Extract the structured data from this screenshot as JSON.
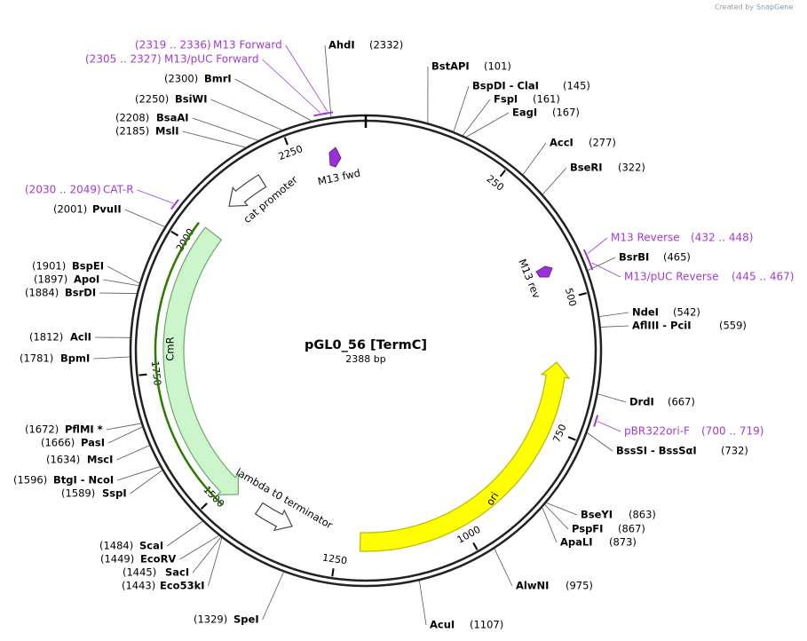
{
  "created_by": "Created by",
  "brand": "SnapGene",
  "title": "pGL0_56 [TermC]",
  "length": "2388 bp",
  "sites": [
    {
      "name": "AhdI",
      "pos": "(2332)"
    },
    {
      "name": "BstAPI",
      "pos": "(101)"
    },
    {
      "name": "BspDI - ClaI",
      "pos": "(145)"
    },
    {
      "name": "FspI",
      "pos": "(161)"
    },
    {
      "name": "EagI",
      "pos": "(167)"
    },
    {
      "name": "AccI",
      "pos": "(277)"
    },
    {
      "name": "BseRI",
      "pos": "(322)"
    },
    {
      "name": "BsrBI",
      "pos": "(465)"
    },
    {
      "name": "NdeI",
      "pos": "(542)"
    },
    {
      "name": "AflIII - PciI",
      "pos": "(559)"
    },
    {
      "name": "DrdI",
      "pos": "(667)"
    },
    {
      "name": "BssSI - BssSαI",
      "pos": "(732)"
    },
    {
      "name": "BseYI",
      "pos": "(863)"
    },
    {
      "name": "PspFI",
      "pos": "(867)"
    },
    {
      "name": "ApaLI",
      "pos": "(873)"
    },
    {
      "name": "AlwNI",
      "pos": "(975)"
    },
    {
      "name": "AcuI",
      "pos": "(1107)"
    },
    {
      "name": "SpeI",
      "pos": "(1329)"
    },
    {
      "name": "Eco53kI",
      "pos": "(1443)"
    },
    {
      "name": "SacI",
      "pos": "(1445)"
    },
    {
      "name": "EcoRV",
      "pos": "(1449)"
    },
    {
      "name": "ScaI",
      "pos": "(1484)"
    },
    {
      "name": "SspI",
      "pos": "(1589)"
    },
    {
      "name": "BtgI - NcoI",
      "pos": "(1596)"
    },
    {
      "name": "MscI",
      "pos": "(1634)"
    },
    {
      "name": "PasI",
      "pos": "(1666)"
    },
    {
      "name": "PflMI *",
      "pos": "(1672)"
    },
    {
      "name": "BpmI",
      "pos": "(1781)"
    },
    {
      "name": "AclI",
      "pos": "(1812)"
    },
    {
      "name": "BsrDI",
      "pos": "(1884)"
    },
    {
      "name": "ApoI",
      "pos": "(1897)"
    },
    {
      "name": "BspEI",
      "pos": "(1901)"
    },
    {
      "name": "PvuII",
      "pos": "(2001)"
    },
    {
      "name": "MslI",
      "pos": "(2185)"
    },
    {
      "name": "BsaAI",
      "pos": "(2208)"
    },
    {
      "name": "BsiWI",
      "pos": "(2250)"
    },
    {
      "name": "BmrI",
      "pos": "(2300)"
    }
  ],
  "primers": [
    {
      "name": "M13 Forward",
      "range": "(2319 .. 2336)"
    },
    {
      "name": "M13/pUC Forward",
      "range": "(2305 .. 2327)"
    },
    {
      "name": "CAT-R",
      "range": "(2030 .. 2049)"
    },
    {
      "name": "M13 Reverse",
      "range": "(432 .. 448)"
    },
    {
      "name": "M13/pUC Reverse",
      "range": "(445 .. 467)"
    },
    {
      "name": "pBR322ori-F",
      "range": "(700 .. 719)"
    }
  ],
  "features": [
    {
      "name": "cat promoter"
    },
    {
      "name": "CmR"
    },
    {
      "name": "lambda t0 terminator"
    },
    {
      "name": "ori"
    },
    {
      "name": "M13 fwd"
    },
    {
      "name": "M13 rev"
    }
  ],
  "ticks": [
    "250",
    "500",
    "750",
    "1000",
    "1250",
    "1500",
    "1750",
    "2000",
    "2250"
  ]
}
